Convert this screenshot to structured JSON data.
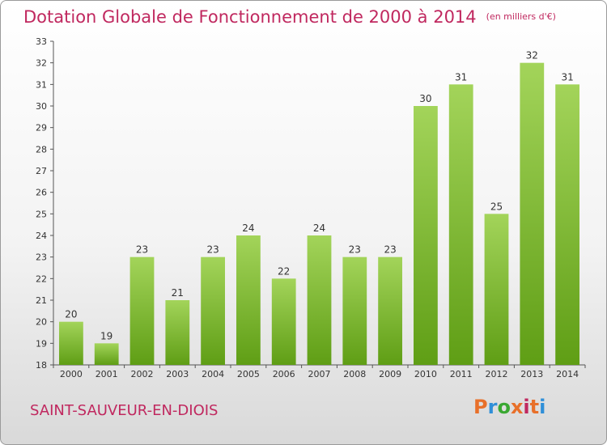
{
  "header": {
    "title": "Dotation Globale de Fonctionnement de 2000 à 2014",
    "subtitle": "(en milliers d'€)"
  },
  "footer": {
    "commune": "SAINT-SAUVEUR-EN-DIOIS",
    "logo_text": "Proxiti"
  },
  "colors": {
    "title": "#c0285f",
    "bar_light": "#a3d45a",
    "bar_dark": "#5f9e15",
    "logo_letters": [
      "#e8702a",
      "#2f8fd8",
      "#3aa832",
      "#e8702a",
      "#c0285f",
      "#e8702a",
      "#2f8fd8"
    ]
  },
  "chart_data": {
    "type": "bar",
    "title": "Dotation Globale de Fonctionnement de 2000 à 2014",
    "subtitle": "(en milliers d'€)",
    "categories": [
      "2000",
      "2001",
      "2002",
      "2003",
      "2004",
      "2005",
      "2006",
      "2007",
      "2008",
      "2009",
      "2010",
      "2011",
      "2012",
      "2013",
      "2014"
    ],
    "values": [
      20,
      19,
      23,
      21,
      23,
      24,
      22,
      24,
      23,
      23,
      30,
      31,
      25,
      32,
      31
    ],
    "ylim": [
      18,
      33
    ],
    "yticks": [
      18,
      19,
      20,
      21,
      22,
      23,
      24,
      25,
      26,
      27,
      28,
      29,
      30,
      31,
      32,
      33
    ],
    "grid": false,
    "data_labels": true
  }
}
